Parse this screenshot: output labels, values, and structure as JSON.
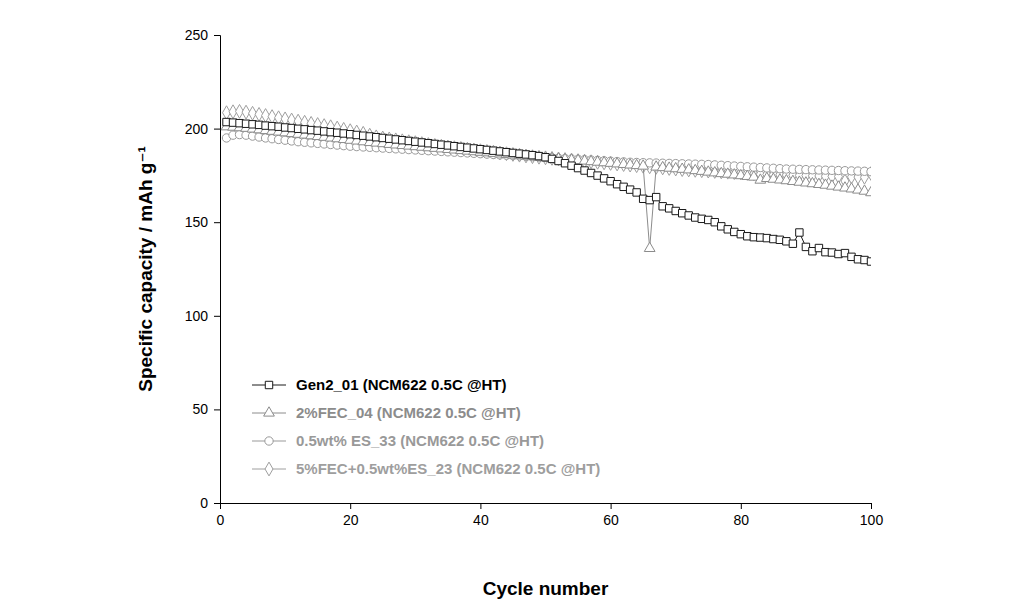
{
  "chart_data": {
    "type": "line",
    "x_label": "Cycle number",
    "y_label": "Specific capacity / mAh g⁻¹",
    "xlim": [
      0,
      100
    ],
    "xticks": [
      0,
      20,
      40,
      60,
      80,
      100
    ],
    "ylim": [
      0,
      250
    ],
    "yticks": [
      0,
      50,
      100,
      150,
      200,
      250
    ],
    "legend": "lower left",
    "x": [
      1,
      2,
      3,
      4,
      5,
      6,
      7,
      8,
      9,
      10,
      11,
      12,
      13,
      14,
      15,
      16,
      17,
      18,
      19,
      20,
      21,
      22,
      23,
      24,
      25,
      26,
      27,
      28,
      29,
      30,
      31,
      32,
      33,
      34,
      35,
      36,
      37,
      38,
      39,
      40,
      41,
      42,
      43,
      44,
      45,
      46,
      47,
      48,
      49,
      50,
      51,
      52,
      53,
      54,
      55,
      56,
      57,
      58,
      59,
      60,
      61,
      62,
      63,
      64,
      65,
      66,
      67,
      68,
      69,
      70,
      71,
      72,
      73,
      74,
      75,
      76,
      77,
      78,
      79,
      80,
      81,
      82,
      83,
      84,
      85,
      86,
      87,
      88,
      89,
      90,
      91,
      92,
      93,
      94,
      95,
      96,
      97,
      98,
      99,
      100
    ],
    "series": [
      {
        "name": "Gen2_01 (NCM622 0.5C @HT)",
        "color": "#1a1a1a",
        "marker": "square",
        "line_style": "solid",
        "values": [
          203.5,
          203.2,
          202.9,
          202.6,
          202.3,
          202.0,
          201.6,
          201.3,
          201.0,
          200.6,
          200.3,
          199.9,
          199.6,
          199.2,
          198.9,
          198.5,
          198.1,
          197.8,
          197.4,
          197.0,
          196.6,
          196.2,
          195.8,
          195.4,
          195.0,
          194.6,
          194.2,
          193.8,
          193.4,
          193.0,
          192.6,
          192.2,
          191.8,
          191.4,
          191.0,
          190.6,
          190.2,
          189.8,
          189.4,
          189.0,
          188.6,
          188.2,
          187.8,
          187.4,
          187.0,
          186.6,
          186.2,
          185.8,
          185.3,
          184.7,
          183.8,
          182.7,
          181.5,
          180.2,
          178.9,
          177.6,
          176.3,
          174.9,
          173.4,
          171.9,
          170.3,
          168.9,
          167.4,
          165.9,
          162.5,
          161.8,
          163.4,
          158.5,
          157.4,
          156.0,
          154.8,
          153.6,
          152.5,
          151.8,
          151.2,
          150.0,
          147.8,
          146.2,
          144.8,
          143.6,
          142.5,
          142.0,
          141.8,
          141.5,
          141.0,
          140.6,
          139.8,
          138.5,
          144.5,
          136.8,
          134.5,
          136.2,
          134.0,
          133.8,
          133.0,
          133.5,
          131.5,
          130.2,
          129.8,
          129.0
        ]
      },
      {
        "name": "2%FEC_04 (NCM622 0.5C @HT)",
        "color": "#8c8c8c",
        "marker": "triangle",
        "line_style": "solid",
        "values": [
          201.0,
          200.8,
          200.5,
          200.2,
          199.8,
          199.4,
          199.0,
          198.6,
          198.2,
          197.8,
          197.4,
          197.0,
          196.6,
          196.2,
          195.8,
          195.4,
          195.0,
          194.6,
          194.2,
          193.8,
          193.4,
          193.0,
          192.6,
          192.3,
          192.0,
          191.6,
          191.3,
          191.0,
          190.7,
          190.4,
          190.1,
          189.8,
          189.5,
          189.2,
          188.9,
          188.6,
          188.3,
          188.0,
          187.7,
          187.4,
          187.1,
          186.8,
          186.5,
          186.2,
          185.9,
          185.6,
          185.3,
          185.0,
          184.7,
          184.4,
          184.1,
          183.8,
          183.5,
          183.2,
          183.0,
          182.7,
          182.4,
          182.1,
          181.8,
          181.5,
          181.2,
          180.9,
          180.6,
          180.3,
          180.0,
          136.0,
          179.5,
          179.2,
          178.9,
          178.6,
          178.3,
          178.0,
          177.6,
          177.2,
          176.8,
          176.4,
          176.0,
          175.7,
          175.3,
          174.9,
          174.5,
          174.1,
          172.5,
          173.4,
          173.0,
          172.6,
          172.2,
          171.8,
          171.4,
          171.0,
          170.6,
          170.2,
          169.8,
          169.3,
          168.8,
          168.3,
          167.8,
          167.2,
          166.6,
          165.8
        ]
      },
      {
        "name": "0.5wt% ES_33 (NCM622 0.5C @HT)",
        "color": "#999999",
        "marker": "circle",
        "line_style": "solid",
        "values": [
          195.0,
          196.5,
          196.8,
          196.5,
          196.0,
          195.5,
          195.0,
          194.6,
          194.2,
          193.8,
          193.4,
          193.0,
          192.7,
          192.4,
          192.1,
          191.8,
          191.5,
          191.2,
          190.9,
          190.6,
          190.4,
          190.2,
          190.0,
          189.8,
          189.6,
          189.4,
          189.2,
          189.0,
          188.8,
          188.6,
          188.4,
          188.2,
          188.0,
          187.8,
          187.6,
          187.4,
          187.2,
          187.0,
          186.8,
          186.6,
          186.4,
          186.2,
          186.0,
          185.8,
          185.6,
          185.4,
          185.2,
          185.0,
          184.8,
          184.6,
          184.4,
          184.2,
          184.0,
          183.8,
          183.6,
          183.4,
          183.2,
          183.0,
          182.8,
          182.6,
          182.4,
          182.2,
          182.0,
          181.9,
          181.8,
          181.7,
          181.6,
          181.5,
          181.4,
          181.3,
          181.2,
          181.1,
          181.0,
          180.9,
          180.8,
          180.6,
          180.4,
          180.2,
          180.0,
          179.8,
          179.6,
          179.4,
          179.2,
          179.0,
          178.8,
          178.6,
          178.4,
          178.3,
          178.2,
          178.1,
          178.0,
          177.9,
          177.8,
          177.7,
          177.6,
          177.5,
          177.4,
          177.3,
          177.2,
          177.0
        ]
      },
      {
        "name": "5%FEC+0.5wt%ES_23 (NCM622 0.5C @HT)",
        "color": "#9e9e9e",
        "marker": "diamond",
        "line_style": "solid",
        "values": [
          208.5,
          209.0,
          209.2,
          208.8,
          208.2,
          207.6,
          207.0,
          206.4,
          205.8,
          205.2,
          204.6,
          204.0,
          203.4,
          202.8,
          202.2,
          201.6,
          201.0,
          200.3,
          199.6,
          198.9,
          198.2,
          197.5,
          196.5,
          195.6,
          195.0,
          194.5,
          194.0,
          193.5,
          193.0,
          192.5,
          192.0,
          191.5,
          191.0,
          190.6,
          190.2,
          189.8,
          189.4,
          189.0,
          188.6,
          188.2,
          187.8,
          187.4,
          187.0,
          186.6,
          186.2,
          185.8,
          185.4,
          185.0,
          184.7,
          184.4,
          184.1,
          183.8,
          183.5,
          183.2,
          182.9,
          182.6,
          182.3,
          182.0,
          181.7,
          181.4,
          181.1,
          180.8,
          180.5,
          180.2,
          179.9,
          179.6,
          179.3,
          179.0,
          178.7,
          178.4,
          178.1,
          177.9,
          177.7,
          177.5,
          177.3,
          177.1,
          176.9,
          176.7,
          176.5,
          176.3,
          176.0,
          175.8,
          175.6,
          175.5,
          175.4,
          175.3,
          175.2,
          175.1,
          175.0,
          174.9,
          174.8,
          174.7,
          174.6,
          174.5,
          174.4,
          172.0,
          174.2,
          174.1,
          174.0,
          176.0
        ]
      }
    ]
  }
}
